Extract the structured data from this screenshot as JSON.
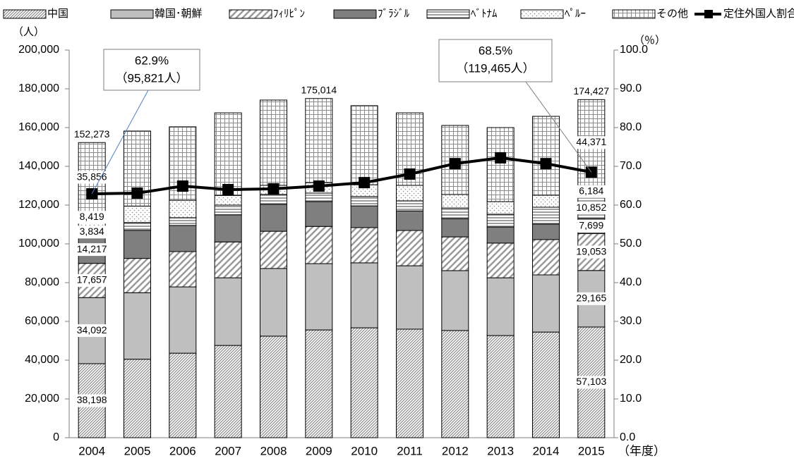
{
  "chart_data": {
    "type": "bar",
    "stacked": true,
    "categories": [
      "2004",
      "2005",
      "2006",
      "2007",
      "2008",
      "2009",
      "2010",
      "2011",
      "2012",
      "2013",
      "2014",
      "2015"
    ],
    "series": [
      {
        "name": "中国",
        "color": "#8c8c8c",
        "fill": "fine-diagonal",
        "values": [
          38198,
          40500,
          43600,
          47600,
          52400,
          55600,
          56700,
          56000,
          55300,
          52700,
          54500,
          57103
        ],
        "value_labels": [
          "38,198",
          null,
          null,
          null,
          null,
          null,
          null,
          null,
          null,
          null,
          null,
          "57,103"
        ]
      },
      {
        "name": "韓国･朝鮮",
        "color": "#bfbfbf",
        "fill": "solid",
        "values": [
          34092,
          34300,
          34200,
          34900,
          34900,
          34200,
          33500,
          32700,
          30900,
          29800,
          29500,
          29165
        ],
        "value_labels": [
          "34,092",
          null,
          null,
          null,
          null,
          null,
          null,
          null,
          null,
          null,
          null,
          "29,165"
        ]
      },
      {
        "name": "ﾌｨﾘﾋﾟﾝ",
        "color": "#9a9a9a",
        "fill": "wide-diagonal",
        "values": [
          17657,
          17700,
          18200,
          18500,
          19200,
          19200,
          18200,
          18200,
          17400,
          17900,
          18200,
          19053
        ],
        "value_labels": [
          "17,657",
          null,
          null,
          null,
          null,
          null,
          null,
          null,
          null,
          null,
          null,
          "19,053"
        ]
      },
      {
        "name": "ﾌﾞﾗｼﾞﾙ",
        "color": "#7f7f7f",
        "fill": "solid",
        "values": [
          14217,
          14500,
          13500,
          14000,
          13900,
          12800,
          11200,
          10100,
          9400,
          8300,
          8000,
          7699
        ],
        "value_labels": [
          "14,217",
          null,
          null,
          null,
          null,
          null,
          null,
          null,
          null,
          null,
          null,
          "7,699"
        ]
      },
      {
        "name": "ﾍﾞﾄﾅﾑ",
        "color": "#7f7f7f",
        "fill": "horizontal",
        "values": [
          3834,
          4000,
          4000,
          5000,
          5100,
          4400,
          4800,
          5200,
          5500,
          6600,
          8700,
          10852
        ],
        "value_labels": [
          "3,834",
          null,
          null,
          null,
          null,
          null,
          null,
          null,
          null,
          null,
          null,
          "10,852"
        ]
      },
      {
        "name": "ﾍﾟﾙｰ",
        "color": "#8c8c8c",
        "fill": "dots",
        "values": [
          8419,
          8500,
          9000,
          5000,
          4700,
          5400,
          6100,
          8000,
          7000,
          6500,
          6200,
          6184
        ],
        "value_labels": [
          "8,419",
          null,
          null,
          null,
          null,
          null,
          null,
          null,
          null,
          null,
          null,
          "6,184"
        ]
      },
      {
        "name": "その他",
        "color": "#8c8c8c",
        "fill": "grid",
        "values": [
          35856,
          38700,
          37900,
          42600,
          44000,
          43400,
          40800,
          37400,
          35600,
          38200,
          40700,
          44371
        ],
        "value_labels": [
          "35,856",
          null,
          null,
          null,
          null,
          null,
          null,
          null,
          null,
          null,
          null,
          "44,371"
        ]
      },
      {
        "name": "定住外国人割合",
        "type": "line",
        "axis": "y2",
        "color": "#000000",
        "values": [
          62.9,
          63.1,
          64.9,
          64.0,
          64.2,
          64.9,
          65.8,
          68.0,
          70.7,
          72.2,
          70.7,
          68.5
        ],
        "value_labels": [
          "62.9%",
          null,
          null,
          null,
          null,
          null,
          null,
          null,
          null,
          null,
          null,
          "68.5%"
        ],
        "count_labels": [
          "（95,821人）",
          null,
          null,
          null,
          null,
          null,
          null,
          null,
          null,
          null,
          null,
          "（119,465人）"
        ]
      }
    ],
    "totals": [
      152273,
      null,
      null,
      null,
      null,
      175014,
      null,
      null,
      null,
      null,
      null,
      174427
    ],
    "total_labels": [
      "152,273",
      null,
      null,
      null,
      null,
      "175,014",
      null,
      null,
      null,
      null,
      null,
      "174,427"
    ],
    "y_label": "（人）",
    "y2_label": "（％）",
    "x_label": "（年度）",
    "ylim": [
      0,
      200000
    ],
    "yticks": [
      0,
      {
        "value": 20000,
        "label": "20,000"
      },
      {
        "value": 40000,
        "label": "40,000"
      },
      {
        "value": 60000,
        "label": "60,000"
      },
      {
        "value": 80000,
        "label": "80,000"
      },
      {
        "value": 100000,
        "label": "100,000"
      },
      {
        "value": 120000,
        "label": "120,000"
      },
      {
        "value": 140000,
        "label": "140,000"
      },
      {
        "value": 160000,
        "label": "160,000"
      },
      {
        "value": 180000,
        "label": "180,000"
      },
      {
        "value": 200000,
        "label": "200,000"
      }
    ],
    "y2lim": [
      0,
      100
    ],
    "y2ticks": [
      {
        "value": 0,
        "label": "0.0"
      },
      {
        "value": 10,
        "label": "10.0"
      },
      {
        "value": 20,
        "label": "20.0"
      },
      {
        "value": 30,
        "label": "30.0"
      },
      {
        "value": 40,
        "label": "40.0"
      },
      {
        "value": 50,
        "label": "50.0"
      },
      {
        "value": 60,
        "label": "60.0"
      },
      {
        "value": 70,
        "label": "70.0"
      },
      {
        "value": 80,
        "label": "80.0"
      },
      {
        "value": 90,
        "label": "90.0"
      },
      {
        "value": 100,
        "label": "100.0"
      }
    ],
    "grid": false,
    "legend": "top"
  }
}
